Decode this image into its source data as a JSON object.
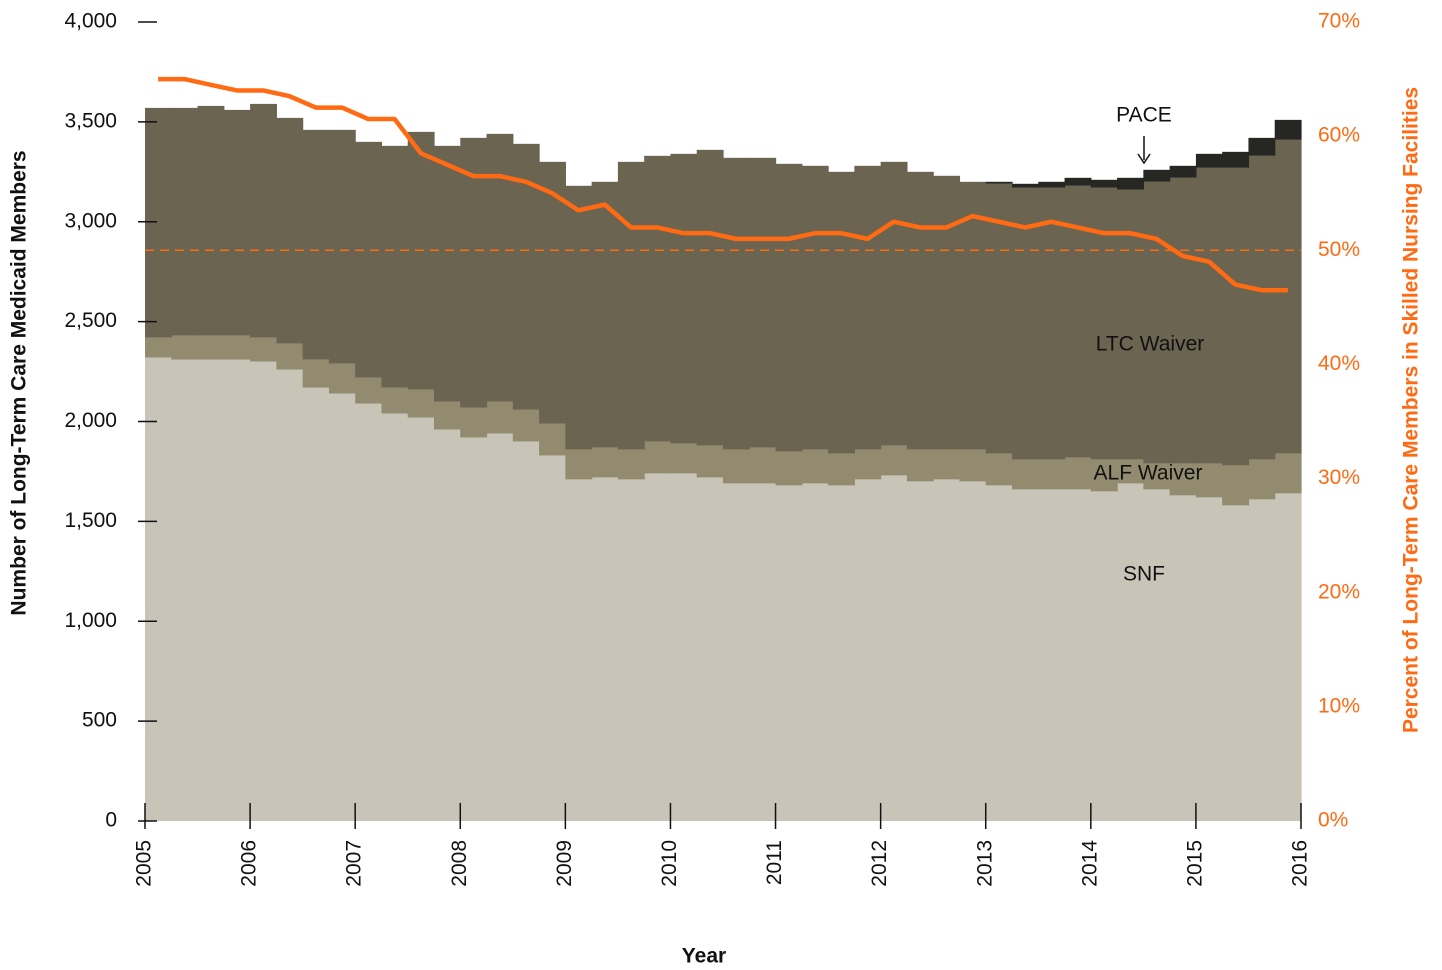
{
  "chart_data": {
    "type": "stacked-area",
    "x_label": "Year",
    "y_label": "Number of Long-Term Care Medicaid Members",
    "y2_label": "Percent of Long-Term Care Members in Skilled Nursing Facilities",
    "x": [
      2005,
      2005.25,
      2005.5,
      2005.75,
      2006,
      2006.25,
      2006.5,
      2006.75,
      2007,
      2007.25,
      2007.5,
      2007.75,
      2008,
      2008.25,
      2008.5,
      2008.75,
      2009,
      2009.25,
      2009.5,
      2009.75,
      2010,
      2010.25,
      2010.5,
      2010.75,
      2011,
      2011.25,
      2011.5,
      2011.75,
      2012,
      2012.25,
      2012.5,
      2012.75,
      2013,
      2013.25,
      2013.5,
      2013.75,
      2014,
      2014.25,
      2014.5,
      2014.75,
      2015,
      2015.25,
      2015.5,
      2015.75
    ],
    "series": [
      {
        "name": "SNF",
        "color": "#c8c5b8",
        "values": [
          2320,
          2310,
          2310,
          2310,
          2300,
          2260,
          2170,
          2140,
          2090,
          2040,
          2020,
          1960,
          1920,
          1940,
          1900,
          1830,
          1710,
          1720,
          1710,
          1740,
          1740,
          1720,
          1690,
          1690,
          1680,
          1690,
          1680,
          1710,
          1730,
          1700,
          1710,
          1700,
          1680,
          1660,
          1660,
          1660,
          1650,
          1690,
          1660,
          1630,
          1620,
          1580,
          1610,
          1640
        ]
      },
      {
        "name": "ALF Waiver",
        "color": "#928b70",
        "values": [
          100,
          120,
          120,
          120,
          120,
          130,
          140,
          150,
          130,
          130,
          140,
          140,
          150,
          160,
          160,
          160,
          150,
          150,
          150,
          160,
          150,
          160,
          170,
          180,
          170,
          170,
          160,
          150,
          150,
          160,
          150,
          160,
          160,
          150,
          150,
          160,
          160,
          120,
          130,
          160,
          170,
          200,
          200,
          200
        ]
      },
      {
        "name": "LTC Waiver",
        "color": "#6b6450",
        "values": [
          1150,
          1140,
          1150,
          1130,
          1170,
          1130,
          1150,
          1170,
          1180,
          1210,
          1290,
          1280,
          1350,
          1340,
          1330,
          1310,
          1320,
          1330,
          1440,
          1430,
          1450,
          1480,
          1460,
          1450,
          1440,
          1420,
          1410,
          1420,
          1420,
          1390,
          1370,
          1340,
          1350,
          1360,
          1360,
          1360,
          1360,
          1350,
          1410,
          1430,
          1480,
          1490,
          1520,
          1570
        ]
      },
      {
        "name": "PACE",
        "color": "#262622",
        "values": [
          0,
          0,
          0,
          0,
          0,
          0,
          0,
          0,
          0,
          0,
          0,
          0,
          0,
          0,
          0,
          0,
          0,
          0,
          0,
          0,
          0,
          0,
          0,
          0,
          0,
          0,
          0,
          0,
          0,
          0,
          0,
          0,
          10,
          20,
          30,
          40,
          40,
          60,
          60,
          60,
          70,
          80,
          90,
          100
        ]
      },
      {
        "name": "Percent in SNF",
        "color": "#ff6a13",
        "axis": "y2",
        "type": "line",
        "values": [
          65,
          65,
          64.5,
          64,
          64,
          63.5,
          62.5,
          62.5,
          61.5,
          61.5,
          58.5,
          57.5,
          56.5,
          56.5,
          56,
          55,
          53.5,
          54,
          52,
          52,
          51.5,
          51.5,
          51,
          51,
          51,
          51.5,
          51.5,
          51,
          52.5,
          52,
          52,
          53,
          52.5,
          52,
          52.5,
          52,
          51.5,
          51.5,
          51,
          49.5,
          49,
          47,
          46.5,
          46.5
        ]
      }
    ],
    "step": 0.25,
    "annotations": [
      "PACE",
      "LTC Waiver",
      "ALF Waiver",
      "SNF"
    ],
    "reference_line": {
      "axis": "y2",
      "value": 50,
      "color": "#ff6a13"
    },
    "xlim": [
      2005,
      2016
    ],
    "xticks": [
      2005,
      2006,
      2007,
      2008,
      2009,
      2010,
      2011,
      2012,
      2013,
      2014,
      2015,
      2016
    ],
    "ylim": [
      0,
      4000
    ],
    "yticks": [
      0,
      500,
      {
        "value": 1000,
        "label": "1,000"
      },
      {
        "value": 1500,
        "label": "1,500"
      },
      {
        "value": 2000,
        "label": "2,000"
      },
      {
        "value": 2500,
        "label": "2,500"
      },
      {
        "value": 3000,
        "label": "3,000"
      },
      {
        "value": 3500,
        "label": "3,500"
      },
      {
        "value": 4000,
        "label": "4,000"
      }
    ],
    "y2lim": [
      0,
      70
    ],
    "y2ticks": [
      {
        "value": 0,
        "label": "0%"
      },
      {
        "value": 10,
        "label": "10%"
      },
      {
        "value": 20,
        "label": "20%"
      },
      {
        "value": 30,
        "label": "30%"
      },
      {
        "value": 40,
        "label": "40%"
      },
      {
        "value": 50,
        "label": "50%"
      },
      {
        "value": 60,
        "label": "60%"
      },
      {
        "value": 70,
        "label": "70%"
      }
    ]
  }
}
